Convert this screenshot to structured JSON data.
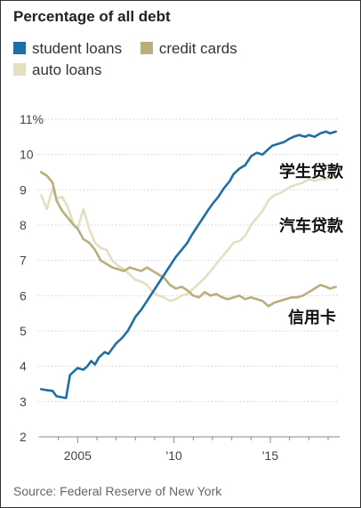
{
  "header": {
    "title": "Percentage of all debt"
  },
  "source": "Source: Federal Reserve of New York",
  "colors": {
    "student": "#1e6fa6",
    "credit": "#b9ae7c",
    "auto": "#e3dfc1",
    "grid": "#d0d0d0",
    "axis": "#888888"
  },
  "chart_data": {
    "type": "line",
    "title": "Percentage of all debt",
    "ylim": [
      2,
      11
    ],
    "xlim": [
      2003.0,
      2018.6
    ],
    "y_ticks": [
      2,
      3,
      4,
      5,
      6,
      7,
      8,
      9,
      10,
      11
    ],
    "y_tick_labels": [
      "2",
      "3",
      "4",
      "5",
      "6",
      "7",
      "8",
      "9",
      "10",
      "11%"
    ],
    "x_ticks": [
      2005,
      2010,
      2015
    ],
    "x_tick_labels": [
      "2005",
      "'10",
      "'15"
    ],
    "grid": true,
    "legend_position": "top-left",
    "legend": [
      "student loans",
      "credit cards",
      "auto loans"
    ],
    "annotations": [
      "学生贷款",
      "汽车贷款",
      "信用卡"
    ],
    "series": [
      {
        "name": "student loans",
        "key": "student",
        "x": [
          2003.1,
          2003.4,
          2003.7,
          2003.9,
          2004.2,
          2004.4,
          2004.6,
          2004.8,
          2005.0,
          2005.3,
          2005.5,
          2005.7,
          2005.9,
          2006.1,
          2006.4,
          2006.6,
          2006.8,
          2007.0,
          2007.3,
          2007.6,
          2007.8,
          2008.0,
          2008.3,
          2008.6,
          2008.9,
          2009.2,
          2009.5,
          2009.8,
          2010.1,
          2010.4,
          2010.7,
          2010.9,
          2011.2,
          2011.5,
          2011.8,
          2012.0,
          2012.3,
          2012.6,
          2012.9,
          2013.1,
          2013.4,
          2013.7,
          2014.0,
          2014.3,
          2014.6,
          2014.9,
          2015.1,
          2015.4,
          2015.7,
          2016.0,
          2016.2,
          2016.5,
          2016.8,
          2017.0,
          2017.3,
          2017.6,
          2017.9,
          2018.1,
          2018.4
        ],
        "values": [
          3.35,
          3.32,
          3.3,
          3.15,
          3.12,
          3.1,
          3.75,
          3.85,
          3.95,
          3.9,
          4.0,
          4.15,
          4.05,
          4.25,
          4.4,
          4.35,
          4.5,
          4.65,
          4.8,
          5.0,
          5.2,
          5.4,
          5.6,
          5.85,
          6.1,
          6.35,
          6.6,
          6.85,
          7.1,
          7.3,
          7.5,
          7.7,
          7.95,
          8.2,
          8.45,
          8.6,
          8.8,
          9.05,
          9.25,
          9.45,
          9.6,
          9.7,
          9.95,
          10.05,
          10.0,
          10.15,
          10.25,
          10.3,
          10.35,
          10.45,
          10.5,
          10.55,
          10.5,
          10.55,
          10.5,
          10.6,
          10.65,
          10.6,
          10.65
        ]
      },
      {
        "name": "credit cards",
        "key": "credit",
        "x": [
          2003.1,
          2003.4,
          2003.7,
          2003.9,
          2004.2,
          2004.5,
          2004.8,
          2005.0,
          2005.3,
          2005.6,
          2005.9,
          2006.2,
          2006.5,
          2006.8,
          2007.1,
          2007.4,
          2007.7,
          2008.0,
          2008.3,
          2008.6,
          2008.9,
          2009.2,
          2009.5,
          2009.8,
          2010.1,
          2010.4,
          2010.7,
          2011.0,
          2011.3,
          2011.6,
          2011.9,
          2012.2,
          2012.5,
          2012.8,
          2013.1,
          2013.4,
          2013.7,
          2014.0,
          2014.3,
          2014.6,
          2014.9,
          2015.2,
          2015.5,
          2015.8,
          2016.1,
          2016.4,
          2016.7,
          2017.0,
          2017.3,
          2017.6,
          2017.9,
          2018.1,
          2018.4
        ],
        "values": [
          9.5,
          9.4,
          9.2,
          8.7,
          8.4,
          8.2,
          8.0,
          7.9,
          7.6,
          7.5,
          7.3,
          7.0,
          6.9,
          6.8,
          6.75,
          6.7,
          6.8,
          6.75,
          6.7,
          6.8,
          6.7,
          6.6,
          6.5,
          6.3,
          6.2,
          6.25,
          6.15,
          6.0,
          5.95,
          6.1,
          6.0,
          6.05,
          5.95,
          5.9,
          5.95,
          6.0,
          5.9,
          5.95,
          5.9,
          5.85,
          5.7,
          5.8,
          5.85,
          5.9,
          5.95,
          5.95,
          6.0,
          6.1,
          6.2,
          6.3,
          6.25,
          6.2,
          6.25
        ]
      },
      {
        "name": "auto loans",
        "key": "auto",
        "x": [
          2003.1,
          2003.4,
          2003.7,
          2003.9,
          2004.2,
          2004.5,
          2004.8,
          2005.0,
          2005.3,
          2005.6,
          2005.9,
          2006.2,
          2006.5,
          2006.8,
          2007.1,
          2007.4,
          2007.7,
          2008.0,
          2008.3,
          2008.6,
          2008.9,
          2009.2,
          2009.5,
          2009.8,
          2010.1,
          2010.4,
          2010.7,
          2011.0,
          2011.3,
          2011.6,
          2011.9,
          2012.2,
          2012.5,
          2012.8,
          2013.1,
          2013.4,
          2013.7,
          2014.0,
          2014.3,
          2014.6,
          2014.9,
          2015.2,
          2015.5,
          2015.8,
          2016.1,
          2016.4,
          2016.7,
          2017.0,
          2017.3,
          2017.6,
          2017.9,
          2018.1,
          2018.4
        ],
        "values": [
          8.85,
          8.45,
          9.05,
          8.75,
          8.8,
          8.5,
          8.0,
          7.9,
          8.45,
          7.9,
          7.5,
          7.35,
          7.3,
          7.0,
          6.85,
          6.75,
          6.6,
          6.45,
          6.4,
          6.3,
          6.1,
          6.0,
          5.95,
          5.85,
          5.9,
          6.0,
          6.05,
          6.2,
          6.35,
          6.5,
          6.7,
          6.9,
          7.1,
          7.3,
          7.5,
          7.55,
          7.7,
          8.0,
          8.2,
          8.4,
          8.7,
          8.85,
          8.9,
          9.0,
          9.1,
          9.15,
          9.2,
          9.3,
          9.25,
          9.3,
          9.3,
          9.35,
          9.35
        ]
      }
    ]
  }
}
